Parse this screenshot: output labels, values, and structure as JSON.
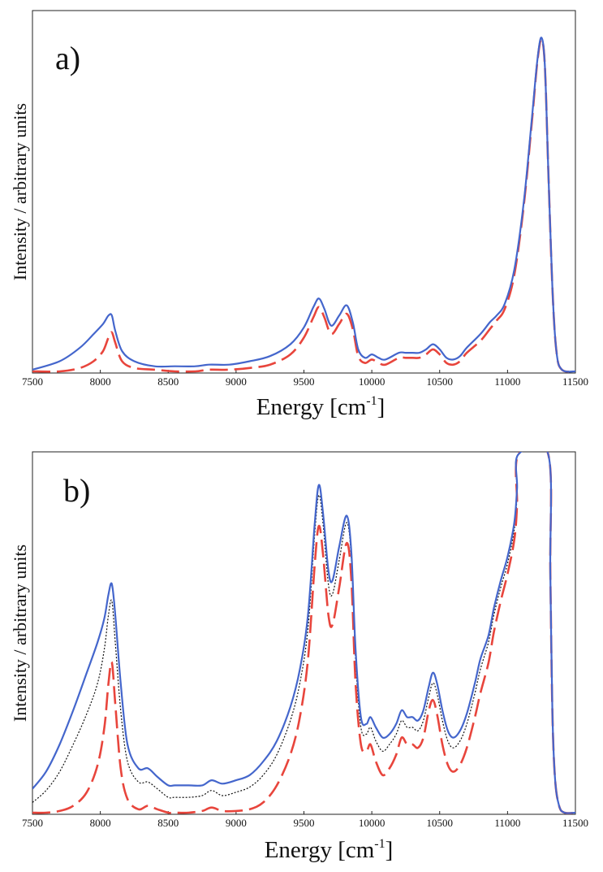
{
  "chart_data": [
    {
      "type": "line",
      "panel_label": "a)",
      "xlabel_main": "Energy [cm",
      "xlabel_sup": "-1",
      "xlabel_end": "]",
      "ylabel": "Intensity / arbitrary units",
      "xlim": [
        7500,
        11500
      ],
      "ylim": [
        0,
        1.0
      ],
      "x_ticks": [
        "7500",
        "8000",
        "8500",
        "9000",
        "9500",
        "10000",
        "10500",
        "11000",
        "11500"
      ],
      "grid": false,
      "colors": {
        "blue": "#4466cc",
        "red": "#e8453c"
      },
      "series": [
        {
          "style": "solid",
          "color": "#4466cc",
          "x": [
            7500,
            7700,
            7850,
            7950,
            8020,
            8060,
            8085,
            8110,
            8160,
            8250,
            8400,
            8550,
            8700,
            8800,
            8950,
            9100,
            9250,
            9400,
            9500,
            9570,
            9610,
            9650,
            9700,
            9760,
            9815,
            9860,
            9900,
            9950,
            10000,
            10050,
            10100,
            10200,
            10250,
            10300,
            10350,
            10400,
            10450,
            10500,
            10550,
            10600,
            10650,
            10700,
            10800,
            10870,
            10920,
            10980,
            11050,
            11120,
            11180,
            11220,
            11250,
            11275,
            11300,
            11330,
            11360,
            11400,
            11500
          ],
          "y": [
            0.005,
            0.03,
            0.07,
            0.11,
            0.14,
            0.165,
            0.165,
            0.12,
            0.06,
            0.03,
            0.015,
            0.015,
            0.015,
            0.02,
            0.02,
            0.03,
            0.045,
            0.08,
            0.13,
            0.19,
            0.215,
            0.185,
            0.135,
            0.165,
            0.195,
            0.145,
            0.065,
            0.04,
            0.05,
            0.04,
            0.035,
            0.055,
            0.055,
            0.055,
            0.055,
            0.065,
            0.08,
            0.065,
            0.04,
            0.035,
            0.045,
            0.07,
            0.11,
            0.145,
            0.165,
            0.2,
            0.3,
            0.5,
            0.75,
            0.92,
            0.985,
            0.9,
            0.6,
            0.25,
            0.06,
            0.005,
            0.0
          ]
        },
        {
          "style": "dashed",
          "color": "#e8453c",
          "x": [
            7500,
            7700,
            7850,
            7950,
            8020,
            8060,
            8085,
            8110,
            8160,
            8250,
            8400,
            8550,
            8700,
            8800,
            8950,
            9100,
            9250,
            9400,
            9500,
            9570,
            9610,
            9650,
            9700,
            9760,
            9815,
            9860,
            9900,
            9950,
            10000,
            10050,
            10100,
            10200,
            10250,
            10300,
            10350,
            10400,
            10450,
            10500,
            10550,
            10600,
            10650,
            10700,
            10800,
            10870,
            10920,
            10980,
            11050,
            11120,
            11180,
            11220,
            11250,
            11275,
            11300,
            11330,
            11360,
            11400,
            11500
          ],
          "y": [
            0.0,
            0.0,
            0.01,
            0.03,
            0.06,
            0.1,
            0.115,
            0.085,
            0.03,
            0.01,
            0.005,
            0.0,
            0.0,
            0.005,
            0.005,
            0.01,
            0.02,
            0.05,
            0.1,
            0.16,
            0.19,
            0.16,
            0.11,
            0.14,
            0.17,
            0.125,
            0.045,
            0.025,
            0.035,
            0.025,
            0.02,
            0.04,
            0.04,
            0.04,
            0.04,
            0.05,
            0.065,
            0.05,
            0.025,
            0.02,
            0.03,
            0.055,
            0.09,
            0.125,
            0.15,
            0.185,
            0.285,
            0.49,
            0.74,
            0.915,
            0.98,
            0.9,
            0.6,
            0.25,
            0.06,
            0.005,
            0.0
          ]
        }
      ]
    },
    {
      "type": "line",
      "panel_label": "b)",
      "xlabel_main": "Energy [cm",
      "xlabel_sup": "-1",
      "xlabel_end": "]",
      "ylabel": "Intensity / arbitrary units",
      "xlim": [
        7500,
        11500
      ],
      "ylim": [
        0,
        1.0
      ],
      "x_ticks": [
        "7500",
        "8000",
        "8500",
        "9000",
        "9500",
        "10000",
        "10500",
        "11000",
        "11500"
      ],
      "grid": false,
      "colors": {
        "blue": "#4466cc",
        "red": "#e8453c",
        "black": "#111111"
      },
      "series": [
        {
          "style": "solid",
          "color": "#4466cc",
          "x": [
            7500,
            7600,
            7700,
            7800,
            7900,
            7980,
            8030,
            8060,
            8085,
            8110,
            8150,
            8200,
            8280,
            8350,
            8420,
            8500,
            8550,
            8650,
            8750,
            8820,
            8900,
            9000,
            9100,
            9200,
            9300,
            9400,
            9470,
            9530,
            9580,
            9610,
            9640,
            9680,
            9710,
            9760,
            9815,
            9850,
            9880,
            9920,
            9960,
            9990,
            10030,
            10080,
            10130,
            10180,
            10220,
            10260,
            10300,
            10340,
            10380,
            10420,
            10450,
            10480,
            10520,
            10560,
            10600,
            10650,
            10700,
            10760,
            10800,
            10860,
            10900,
            10950,
            11000,
            11050,
            11070,
            11080,
            11300,
            11315,
            11330,
            11350,
            11380,
            11420,
            11500
          ],
          "y": [
            0.07,
            0.12,
            0.2,
            0.3,
            0.41,
            0.5,
            0.57,
            0.64,
            0.67,
            0.58,
            0.38,
            0.2,
            0.13,
            0.13,
            0.105,
            0.08,
            0.08,
            0.08,
            0.08,
            0.095,
            0.085,
            0.095,
            0.11,
            0.15,
            0.21,
            0.31,
            0.42,
            0.58,
            0.85,
            0.96,
            0.88,
            0.71,
            0.68,
            0.78,
            0.87,
            0.76,
            0.48,
            0.28,
            0.26,
            0.28,
            0.25,
            0.22,
            0.23,
            0.26,
            0.3,
            0.28,
            0.28,
            0.27,
            0.3,
            0.37,
            0.41,
            0.38,
            0.3,
            0.24,
            0.22,
            0.24,
            0.29,
            0.38,
            0.45,
            0.52,
            0.6,
            0.68,
            0.75,
            0.85,
            0.95,
            1.05,
            1.05,
            0.7,
            0.3,
            0.1,
            0.02,
            0.0,
            0.0
          ]
        },
        {
          "style": "dotted",
          "color": "#111111",
          "x": [
            7500,
            7600,
            7700,
            7800,
            7900,
            7980,
            8030,
            8060,
            8085,
            8110,
            8150,
            8200,
            8280,
            8350,
            8420,
            8500,
            8550,
            8650,
            8750,
            8820,
            8900,
            9000,
            9100,
            9200,
            9300,
            9400,
            9470,
            9530,
            9580,
            9610,
            9640,
            9680,
            9710,
            9760,
            9815,
            9850,
            9880,
            9920,
            9960,
            9990,
            10030,
            10080,
            10130,
            10180,
            10220,
            10260,
            10300,
            10340,
            10380,
            10420,
            10450,
            10480,
            10520,
            10560,
            10600,
            10650,
            10700,
            10760,
            10800,
            10860,
            10900,
            10950,
            11000,
            11050,
            11070,
            11080,
            11300,
            11315,
            11330,
            11350,
            11380,
            11420,
            11500
          ],
          "y": [
            0.03,
            0.065,
            0.12,
            0.2,
            0.29,
            0.38,
            0.48,
            0.58,
            0.62,
            0.5,
            0.3,
            0.15,
            0.09,
            0.09,
            0.07,
            0.045,
            0.045,
            0.045,
            0.05,
            0.065,
            0.05,
            0.06,
            0.075,
            0.11,
            0.17,
            0.27,
            0.38,
            0.54,
            0.82,
            0.93,
            0.85,
            0.67,
            0.64,
            0.74,
            0.85,
            0.74,
            0.45,
            0.25,
            0.23,
            0.25,
            0.21,
            0.18,
            0.2,
            0.23,
            0.27,
            0.25,
            0.25,
            0.24,
            0.27,
            0.34,
            0.38,
            0.35,
            0.27,
            0.21,
            0.19,
            0.21,
            0.26,
            0.35,
            0.42,
            0.5,
            0.58,
            0.66,
            0.73,
            0.83,
            0.93,
            1.05,
            1.05,
            0.7,
            0.3,
            0.1,
            0.02,
            0.0,
            0.0
          ]
        },
        {
          "style": "dashed",
          "color": "#e8453c",
          "x": [
            7500,
            7600,
            7700,
            7800,
            7900,
            7980,
            8030,
            8060,
            8085,
            8110,
            8150,
            8200,
            8280,
            8350,
            8420,
            8500,
            8550,
            8650,
            8750,
            8820,
            8900,
            9000,
            9100,
            9200,
            9300,
            9400,
            9470,
            9530,
            9580,
            9610,
            9640,
            9680,
            9710,
            9760,
            9815,
            9850,
            9880,
            9920,
            9960,
            9990,
            10030,
            10080,
            10130,
            10180,
            10220,
            10260,
            10300,
            10340,
            10380,
            10420,
            10450,
            10480,
            10520,
            10560,
            10600,
            10650,
            10700,
            10760,
            10800,
            10860,
            10900,
            10950,
            11000,
            11050,
            11070,
            11080,
            11300,
            11315,
            11330,
            11350,
            11380,
            11420,
            11500
          ],
          "y": [
            0.0,
            0.0,
            0.005,
            0.02,
            0.06,
            0.14,
            0.25,
            0.38,
            0.44,
            0.32,
            0.13,
            0.04,
            0.01,
            0.02,
            0.01,
            0.0,
            0.0,
            0.0,
            0.005,
            0.015,
            0.005,
            0.005,
            0.01,
            0.03,
            0.08,
            0.17,
            0.28,
            0.45,
            0.73,
            0.84,
            0.76,
            0.58,
            0.55,
            0.66,
            0.79,
            0.68,
            0.38,
            0.2,
            0.18,
            0.2,
            0.15,
            0.11,
            0.13,
            0.17,
            0.22,
            0.2,
            0.2,
            0.19,
            0.22,
            0.3,
            0.33,
            0.29,
            0.2,
            0.14,
            0.12,
            0.14,
            0.19,
            0.28,
            0.35,
            0.44,
            0.53,
            0.62,
            0.7,
            0.8,
            0.9,
            1.05,
            1.05,
            0.7,
            0.3,
            0.1,
            0.02,
            0.0,
            0.0
          ]
        }
      ]
    }
  ]
}
